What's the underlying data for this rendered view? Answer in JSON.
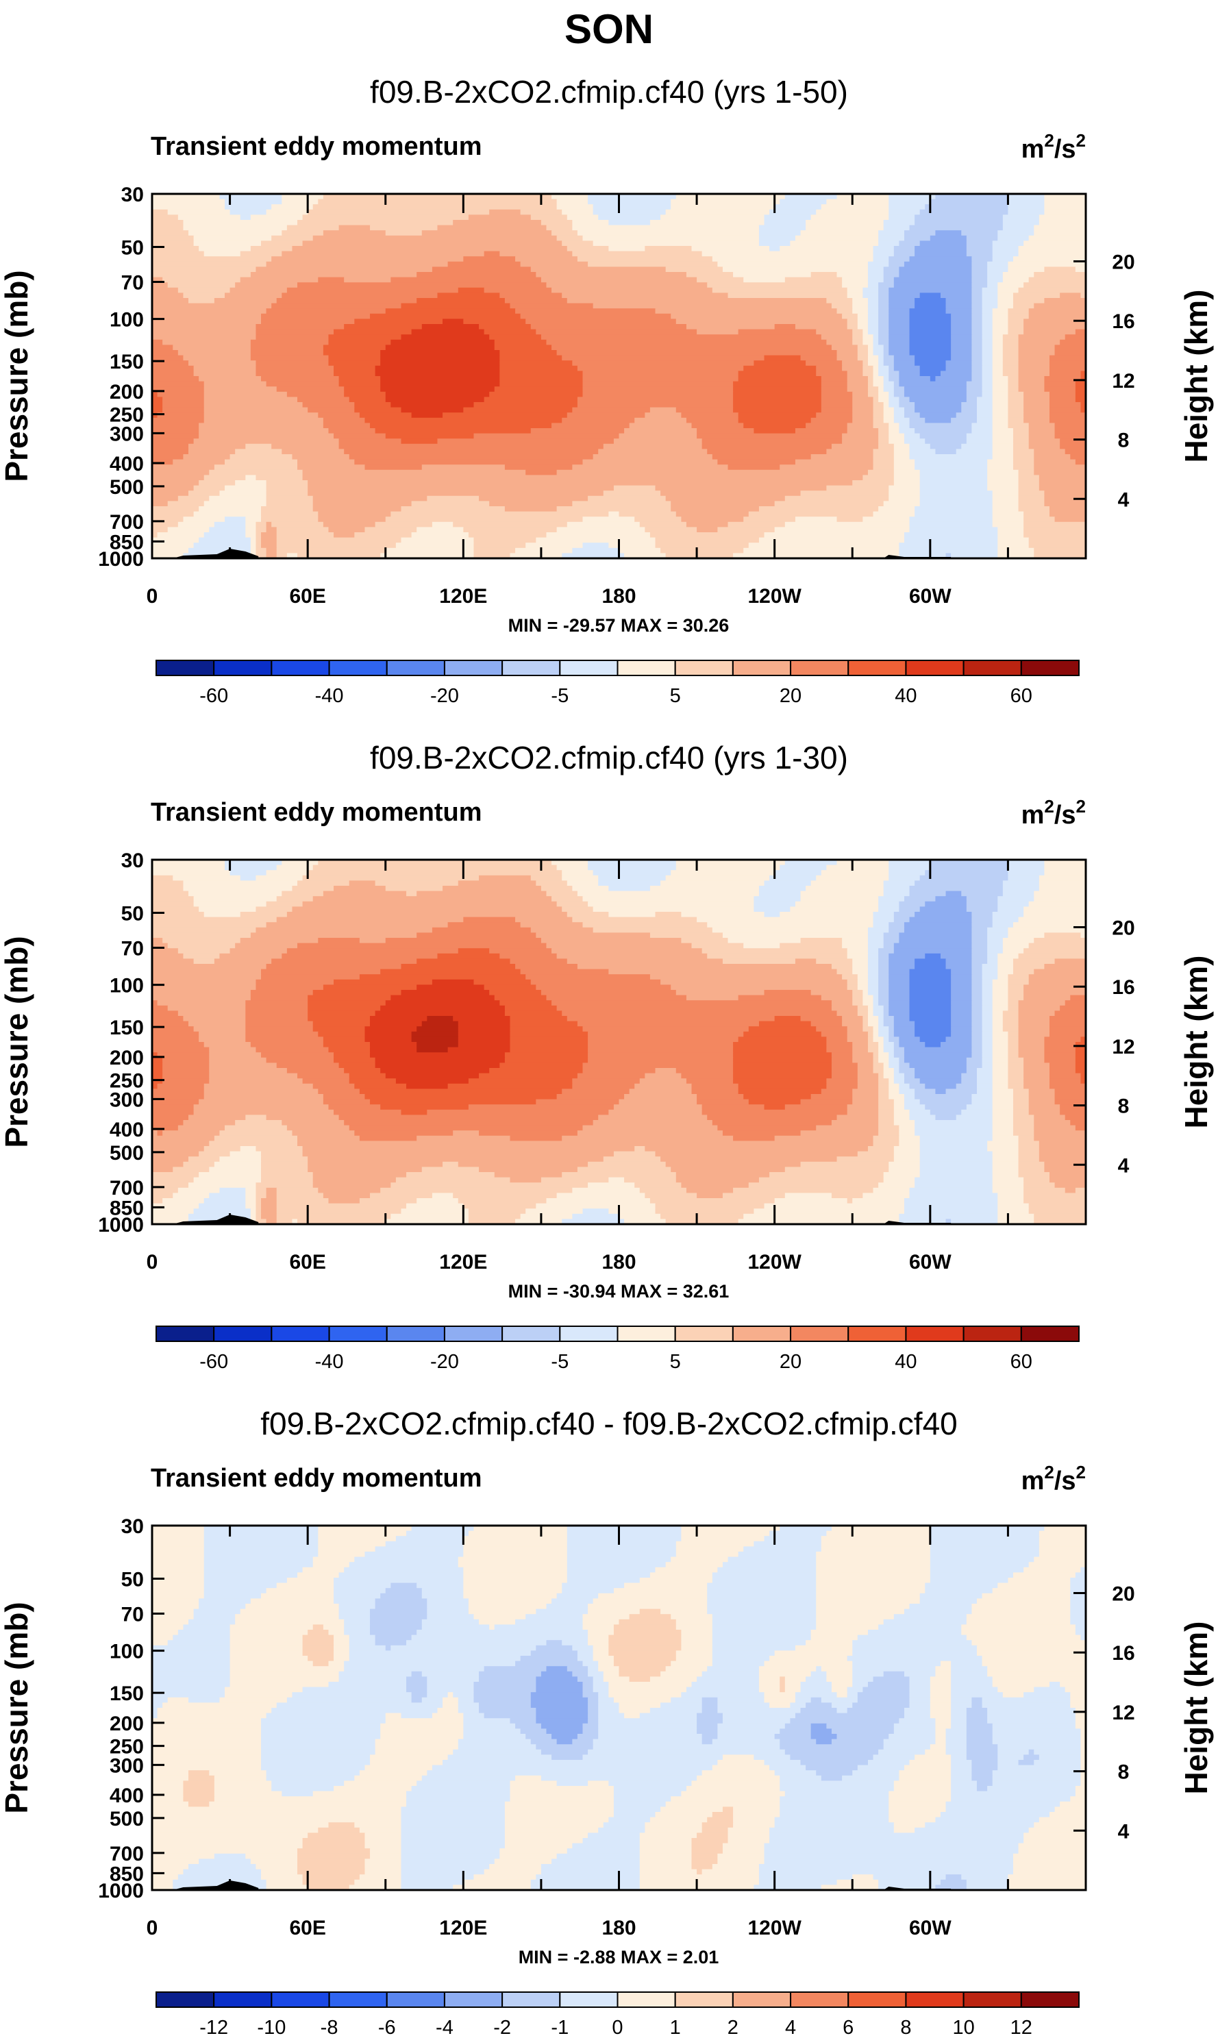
{
  "page_title": "SON",
  "units_base": "m",
  "units_exp1": "2",
  "units_mid": "/s",
  "units_exp2": "2",
  "colors": {
    "neg": [
      "#0a1f8c",
      "#0a2fc8",
      "#1a48e6",
      "#2f64f0",
      "#5a86ef",
      "#8eadf2",
      "#bcd0f6",
      "#d9e8fb"
    ],
    "pos": [
      "#fdefdd",
      "#fbd2b6",
      "#f7ae8c",
      "#f38760",
      "#ef6136",
      "#e03a1c",
      "#bb2411",
      "#8b0a0a"
    ]
  },
  "chart_data": [
    {
      "type": "heatmap",
      "title": "f09.B-2xCO2.cfmip.cf40 (yrs 1-50)",
      "subtitle": "Transient eddy momentum",
      "ylabel": "Pressure (mb)",
      "ylabel_right": "Height (km)",
      "yticks": [
        "30",
        "50",
        "70",
        "100",
        "150",
        "200",
        "250",
        "300",
        "400",
        "500",
        "700",
        "850",
        "1000"
      ],
      "ytick_values": [
        30,
        50,
        70,
        100,
        150,
        200,
        250,
        300,
        400,
        500,
        700,
        850,
        1000
      ],
      "yticks_right": [
        "20",
        "16",
        "12",
        "8",
        "4"
      ],
      "yticks_right_values": [
        20,
        16,
        12,
        8,
        4
      ],
      "xticks": [
        "0",
        "60E",
        "120E",
        "180",
        "120W",
        "60W"
      ],
      "xtick_values": [
        0,
        60,
        120,
        180,
        240,
        300
      ],
      "xlim": [
        0,
        360
      ],
      "stats": "MIN = -29.57   MAX =  30.26",
      "levels": [
        -60,
        -50,
        -40,
        -30,
        -20,
        -10,
        -5,
        0,
        5,
        10,
        20,
        30,
        40,
        50,
        60
      ],
      "colorbar_labels": [
        "-60",
        "-40",
        "-20",
        "-5",
        "5",
        "20",
        "40",
        "60"
      ],
      "colorbar_label_after_box": [
        1,
        3,
        5,
        7,
        9,
        11,
        13,
        15
      ],
      "features": [
        {
          "lon": 90,
          "lonw": 55,
          "p": 150,
          "dz": 3.8,
          "amp": 24
        },
        {
          "lon": 130,
          "lonw": 45,
          "p": 150,
          "dz": 3.0,
          "amp": 26
        },
        {
          "lon": 248,
          "lonw": 38,
          "p": 180,
          "dz": 3.2,
          "amp": 30
        },
        {
          "lon": 300,
          "lonw": 16,
          "p": 160,
          "dz": 3.2,
          "amp": -30
        },
        {
          "lon": 352,
          "lonw": 18,
          "p": 230,
          "dz": 2.6,
          "amp": 14
        },
        {
          "lon": 2,
          "lonw": 14,
          "p": 200,
          "dz": 2.6,
          "amp": 14
        },
        {
          "lon": 45,
          "lonw": 4,
          "p": 870,
          "dz": 0.9,
          "amp": 12
        },
        {
          "lon": 180,
          "lonw": 160,
          "p": 60,
          "dz": 2.5,
          "amp": -4
        },
        {
          "lon": 230,
          "lonw": 40,
          "p": 330,
          "dz": 2.0,
          "amp": 4
        },
        {
          "lon": 270,
          "lonw": 30,
          "p": 90,
          "dz": 2.0,
          "amp": -6
        },
        {
          "lon": 30,
          "lonw": 18,
          "p": 450,
          "dz": 2.0,
          "amp": -5
        }
      ]
    },
    {
      "type": "heatmap",
      "title": "f09.B-2xCO2.cfmip.cf40 (yrs 1-30)",
      "subtitle": "Transient eddy momentum",
      "ylabel": "Pressure (mb)",
      "ylabel_right": "Height (km)",
      "yticks": [
        "30",
        "50",
        "70",
        "100",
        "150",
        "200",
        "250",
        "300",
        "400",
        "500",
        "700",
        "850",
        "1000"
      ],
      "ytick_values": [
        30,
        50,
        70,
        100,
        150,
        200,
        250,
        300,
        400,
        500,
        700,
        850,
        1000
      ],
      "yticks_right": [
        "20",
        "16",
        "12",
        "8",
        "4"
      ],
      "yticks_right_values": [
        20,
        16,
        12,
        8,
        4
      ],
      "xticks": [
        "0",
        "60E",
        "120E",
        "180",
        "120W",
        "60W"
      ],
      "xtick_values": [
        0,
        60,
        120,
        180,
        240,
        300
      ],
      "xlim": [
        0,
        360
      ],
      "stats": "MIN = -30.94   MAX =  32.61",
      "levels": [
        -60,
        -50,
        -40,
        -30,
        -20,
        -10,
        -5,
        0,
        5,
        10,
        20,
        30,
        40,
        50,
        60
      ],
      "colorbar_labels": [
        "-60",
        "-40",
        "-20",
        "-5",
        "5",
        "20",
        "40",
        "60"
      ],
      "colorbar_label_after_box": [
        1,
        3,
        5,
        7,
        9,
        11,
        13,
        15
      ],
      "features": [
        {
          "lon": 90,
          "lonw": 55,
          "p": 150,
          "dz": 3.8,
          "amp": 26
        },
        {
          "lon": 130,
          "lonw": 45,
          "p": 150,
          "dz": 3.0,
          "amp": 27
        },
        {
          "lon": 250,
          "lonw": 36,
          "p": 185,
          "dz": 3.2,
          "amp": 32
        },
        {
          "lon": 300,
          "lonw": 16,
          "p": 160,
          "dz": 3.2,
          "amp": -31
        },
        {
          "lon": 352,
          "lonw": 18,
          "p": 230,
          "dz": 2.6,
          "amp": 14
        },
        {
          "lon": 2,
          "lonw": 14,
          "p": 200,
          "dz": 2.6,
          "amp": 14
        },
        {
          "lon": 45,
          "lonw": 4,
          "p": 870,
          "dz": 0.9,
          "amp": 12
        },
        {
          "lon": 180,
          "lonw": 160,
          "p": 60,
          "dz": 2.5,
          "amp": -4
        },
        {
          "lon": 230,
          "lonw": 40,
          "p": 330,
          "dz": 2.0,
          "amp": 4
        },
        {
          "lon": 270,
          "lonw": 30,
          "p": 90,
          "dz": 2.0,
          "amp": -6
        },
        {
          "lon": 30,
          "lonw": 18,
          "p": 450,
          "dz": 2.0,
          "amp": -5
        }
      ]
    },
    {
      "type": "heatmap",
      "title": "f09.B-2xCO2.cfmip.cf40 - f09.B-2xCO2.cfmip.cf40",
      "subtitle": "Transient eddy momentum",
      "ylabel": "Pressure (mb)",
      "ylabel_right": "Height (km)",
      "yticks": [
        "30",
        "50",
        "70",
        "100",
        "150",
        "200",
        "250",
        "300",
        "400",
        "500",
        "700",
        "850",
        "1000"
      ],
      "ytick_values": [
        30,
        50,
        70,
        100,
        150,
        200,
        250,
        300,
        400,
        500,
        700,
        850,
        1000
      ],
      "yticks_right": [
        "20",
        "16",
        "12",
        "8",
        "4"
      ],
      "yticks_right_values": [
        20,
        16,
        12,
        8,
        4
      ],
      "xticks": [
        "0",
        "60E",
        "120E",
        "180",
        "120W",
        "60W"
      ],
      "xtick_values": [
        0,
        60,
        120,
        180,
        240,
        300
      ],
      "xlim": [
        0,
        360
      ],
      "stats": "MIN = -2.88   MAX =  2.01",
      "levels": [
        -12,
        -10,
        -8,
        -6,
        -4,
        -2,
        -1,
        0,
        1,
        2,
        4,
        6,
        8,
        10,
        12
      ],
      "colorbar_labels": [
        "-12",
        "-10",
        "-8",
        "-6",
        "-4",
        "-2",
        "-1",
        "0",
        "1",
        "2",
        "4",
        "6",
        "8",
        "10",
        "12"
      ],
      "colorbar_label_after_box": [
        1,
        2,
        3,
        4,
        5,
        6,
        7,
        8,
        9,
        10,
        11,
        12,
        13,
        14,
        15
      ],
      "features": [
        {
          "lon": 160,
          "lonw": 10,
          "p": 180,
          "dz": 1.8,
          "amp": -2.9
        },
        {
          "lon": 252,
          "lonw": 18,
          "p": 210,
          "dz": 1.2,
          "amp": -2.7
        },
        {
          "lon": 8,
          "lonw": 10,
          "p": 150,
          "dz": 2.0,
          "amp": 0.8
        },
        {
          "lon": 67,
          "lonw": 6,
          "p": 100,
          "dz": 0.8,
          "amp": 1.5
        },
        {
          "lon": 243,
          "lonw": 5,
          "p": 150,
          "dz": 0.8,
          "amp": 1.5
        },
        {
          "lon": 266,
          "lonw": 4,
          "p": 150,
          "dz": 0.8,
          "amp": 1.3
        },
        {
          "lon": 304,
          "lonw": 3,
          "p": 150,
          "dz": 0.8,
          "amp": 1.3
        },
        {
          "lon": 318,
          "lonw": 5,
          "p": 200,
          "dz": 2.0,
          "amp": -1.3
        },
        {
          "lon": 103,
          "lonw": 5,
          "p": 150,
          "dz": 0.7,
          "amp": -1.5
        },
        {
          "lon": 130,
          "lonw": 5,
          "p": 150,
          "dz": 0.7,
          "amp": -1.4
        },
        {
          "lon": 215,
          "lonw": 3,
          "p": 190,
          "dz": 0.8,
          "amp": -1.2
        },
        {
          "lon": 178,
          "lonw": 22,
          "p": 100,
          "dz": 1.3,
          "amp": 0.9
        },
        {
          "lon": 225,
          "lonw": 20,
          "p": 400,
          "dz": 1.6,
          "amp": 0.8
        },
        {
          "lon": 60,
          "lonw": 25,
          "p": 600,
          "dz": 2.0,
          "amp": 0.7
        },
        {
          "lon": 100,
          "lonw": 30,
          "p": 120,
          "dz": 2.5,
          "amp": -0.6
        },
        {
          "lon": 300,
          "lonw": 25,
          "p": 450,
          "dz": 2.5,
          "amp": -0.6
        }
      ]
    }
  ]
}
